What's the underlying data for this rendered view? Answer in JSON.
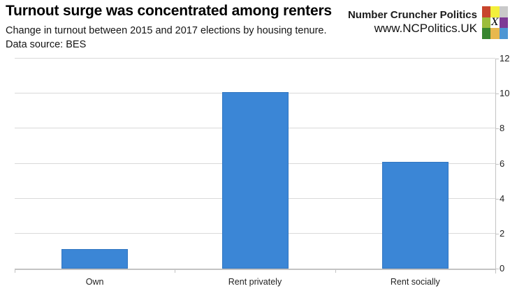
{
  "header": {
    "title": "Turnout surge was concentrated among renters",
    "subtitle": "Change in turnout between 2015 and 2017 elections by housing tenure.",
    "datasource": "Data source: BES",
    "brand": {
      "name": "Number Cruncher Politics",
      "url": "www.NCPolitics.UK"
    },
    "logo": {
      "name": "ncp-colour-grid-logo",
      "glyph": "X",
      "cells": [
        "#C8452C",
        "#F3EF3B",
        "#C9C9C9",
        "#9CBD3C",
        "#FFFFFF",
        "#7E3A96",
        "#38862F",
        "#E8B84E",
        "#4D96D4"
      ]
    }
  },
  "chart_data": {
    "type": "bar",
    "title": "Turnout surge was concentrated among renters",
    "subtitle": "Change in turnout between 2015 and 2017 elections by housing tenure. Data source: BES",
    "categories": [
      "Own",
      "Rent privately",
      "Rent socially"
    ],
    "values": [
      1.1,
      10.1,
      6.1
    ],
    "xlabel": "",
    "ylabel": "",
    "ylim": [
      0,
      12
    ],
    "yticks": [
      0,
      2,
      4,
      6,
      8,
      10,
      12
    ],
    "grid": true,
    "y_axis_side": "right",
    "legend": "none",
    "colors": {
      "bar": "#3B86D6",
      "bar_border": "rgba(35,88,152,0.35)",
      "gridline": "#D9D9D9",
      "axis_line": "#C3C3C3",
      "tick_label": "#222222"
    }
  }
}
